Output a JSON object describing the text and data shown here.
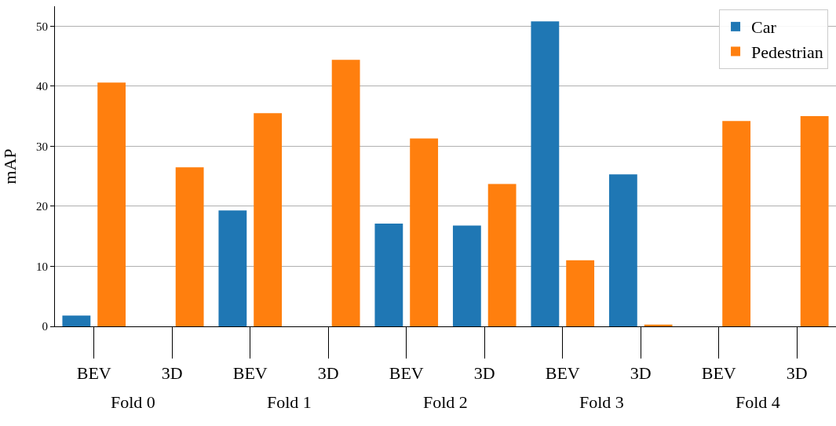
{
  "chart_data": {
    "type": "bar",
    "ylabel": "mAP",
    "categories": [
      "BEV",
      "3D",
      "BEV",
      "3D",
      "BEV",
      "3D",
      "BEV",
      "3D",
      "BEV",
      "3D"
    ],
    "series": [
      {
        "name": "Car",
        "color": "#1f77b4",
        "values": [
          1.8,
          0,
          19.3,
          0,
          17.1,
          16.8,
          50.8,
          25.3,
          0,
          0
        ]
      },
      {
        "name": "Pedestrian",
        "color": "#ff7f0e",
        "values": [
          40.6,
          26.5,
          35.5,
          44.4,
          31.3,
          23.7,
          11.0,
          0.3,
          34.2,
          35.0
        ]
      }
    ],
    "annotations": [
      "Fold 0",
      "Fold 1",
      "Fold 2",
      "Fold 3",
      "Fold 4"
    ],
    "ylim": [
      0,
      53.3
    ],
    "yticks": [
      0,
      10,
      20,
      30,
      40,
      50
    ],
    "grid": "y",
    "legend": "top right"
  }
}
